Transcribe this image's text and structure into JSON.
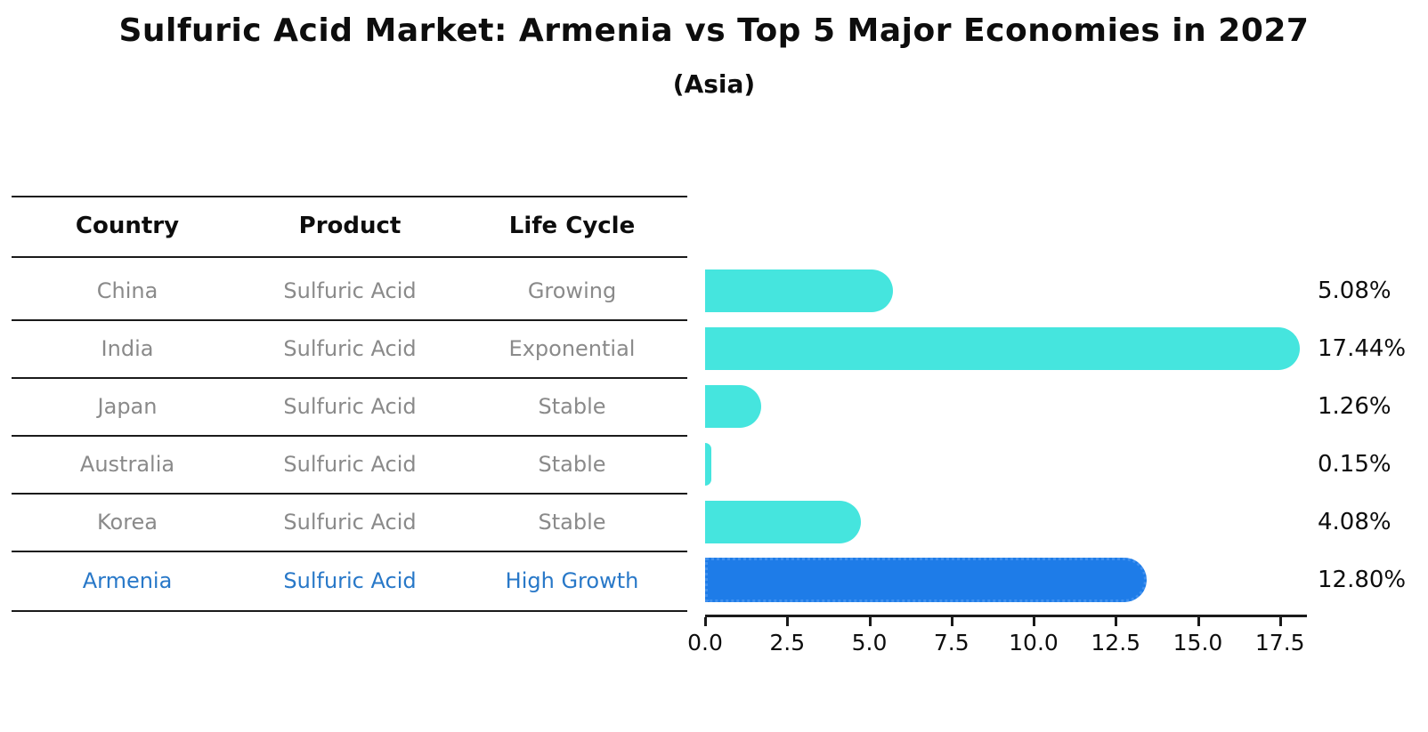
{
  "title": "Sulfuric Acid Market: Armenia vs Top 5 Major Economies in 2027",
  "subtitle": "(Asia)",
  "table": {
    "headers": {
      "country": "Country",
      "product": "Product",
      "life_cycle": "Life Cycle"
    },
    "rows": [
      {
        "country": "China",
        "product": "Sulfuric Acid",
        "life_cycle": "Growing"
      },
      {
        "country": "India",
        "product": "Sulfuric Acid",
        "life_cycle": "Exponential"
      },
      {
        "country": "Japan",
        "product": "Sulfuric Acid",
        "life_cycle": "Stable"
      },
      {
        "country": "Australia",
        "product": "Sulfuric Acid",
        "life_cycle": "Stable"
      },
      {
        "country": "Korea",
        "product": "Sulfuric Acid",
        "life_cycle": "Stable"
      },
      {
        "country": "Armenia",
        "product": "Sulfuric Acid",
        "life_cycle": "High Growth"
      }
    ],
    "highlighted_row": "Armenia"
  },
  "chart_data": {
    "type": "bar",
    "orientation": "horizontal",
    "title": "Sulfuric Acid Market: Armenia vs Top 5 Major Economies in 2027",
    "subtitle": "(Asia)",
    "categories": [
      "China",
      "India",
      "Japan",
      "Australia",
      "Korea",
      "Armenia"
    ],
    "values": [
      5.08,
      17.44,
      1.26,
      0.15,
      4.08,
      12.8
    ],
    "value_labels": [
      "5.08%",
      "17.44%",
      "1.26%",
      "0.15%",
      "4.08%",
      "12.80%"
    ],
    "x_ticks": [
      0.0,
      2.5,
      5.0,
      7.5,
      10.0,
      12.5,
      15.0,
      17.5
    ],
    "x_tick_labels": [
      "0.0",
      "2.5",
      "5.0",
      "7.5",
      "10.0",
      "12.5",
      "15.0",
      "17.5"
    ],
    "xlim": [
      0,
      18.3
    ],
    "grid": false,
    "legend": false,
    "highlight_index": 5,
    "bar_color": "#45E5DE",
    "highlight_bar_color": "#1E7CE8"
  },
  "colors": {
    "bar": "#45E5DE",
    "highlight_bar": "#1E7CE8",
    "highlight_text": "#2878C8",
    "table_text": "#8A8A8A",
    "heading_text": "#0D0D0D",
    "line": "#1A1A1A"
  }
}
